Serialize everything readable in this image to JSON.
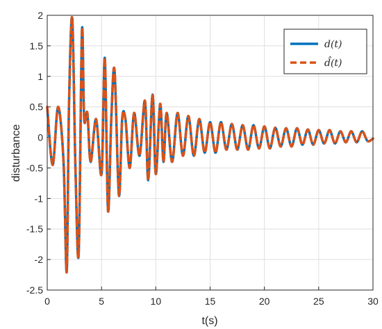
{
  "chart_data": {
    "type": "line",
    "xlabel": "t(s)",
    "ylabel": "disturbance",
    "xlim": [
      0,
      30
    ],
    "ylim": [
      -2.5,
      2
    ],
    "xticks": [
      "0",
      "5",
      "10",
      "15",
      "20",
      "25",
      "30"
    ],
    "yticks": [
      "2",
      "1.5",
      "1",
      "0.5",
      "0",
      "-0.5",
      "-1",
      "-1.5",
      "-2",
      "-2.5"
    ],
    "grid": true,
    "legend_position": "top-right",
    "series": [
      {
        "name": "d(t)",
        "style": "solid",
        "color": "#0072BD",
        "x": [
          0,
          0.5,
          1.0,
          1.5,
          1.8,
          2.0,
          2.3,
          2.6,
          2.9,
          3.2,
          3.4,
          3.7,
          4.0,
          4.5,
          5.0,
          5.3,
          5.6,
          5.9,
          6.2,
          6.6,
          6.9,
          7.2,
          7.6,
          8.0,
          8.5,
          9.0,
          9.3,
          9.7,
          10.0,
          10.4,
          10.7,
          11.0,
          11.5,
          12.0,
          12.5,
          13.0,
          13.5,
          14.0,
          14.5,
          15.0,
          15.5,
          16.0,
          16.5,
          17.0,
          17.5,
          18.0,
          18.5,
          19.0,
          19.5,
          20.0,
          20.5,
          21.0,
          21.5,
          22.0,
          22.5,
          23.0,
          23.5,
          24.0,
          24.5,
          25.0,
          25.5,
          26.0,
          26.5,
          27.0,
          27.5,
          28.0,
          28.5,
          29.0,
          29.5,
          30.0
        ],
        "y": [
          0.5,
          -0.45,
          0.5,
          -0.4,
          -2.2,
          0.5,
          1.95,
          -0.5,
          -1.9,
          1.75,
          0.3,
          0.4,
          -0.4,
          0.3,
          -0.6,
          1.3,
          -1.2,
          0.3,
          1.1,
          -0.95,
          0.3,
          0.3,
          -0.5,
          0.4,
          -0.3,
          0.6,
          -0.7,
          0.7,
          -0.6,
          0.55,
          -0.4,
          0.4,
          -0.4,
          0.4,
          -0.3,
          0.35,
          -0.3,
          0.3,
          -0.25,
          0.25,
          -0.25,
          0.25,
          -0.2,
          0.22,
          -0.2,
          0.2,
          -0.2,
          0.2,
          -0.18,
          0.18,
          -0.18,
          0.16,
          -0.15,
          0.15,
          -0.15,
          0.15,
          -0.12,
          0.13,
          -0.12,
          0.12,
          -0.1,
          0.12,
          -0.1,
          0.1,
          -0.08,
          0.1,
          -0.08,
          0.1,
          -0.06,
          -0.02
        ]
      },
      {
        "name": "d̂(t)",
        "style": "dashed",
        "color": "#D95319",
        "x": [
          0,
          0.5,
          1.0,
          1.5,
          1.8,
          2.0,
          2.3,
          2.6,
          2.9,
          3.2,
          3.4,
          3.7,
          4.0,
          4.5,
          5.0,
          5.3,
          5.6,
          5.9,
          6.2,
          6.6,
          6.9,
          7.2,
          7.6,
          8.0,
          8.5,
          9.0,
          9.3,
          9.7,
          10.0,
          10.4,
          10.7,
          11.0,
          11.5,
          12.0,
          12.5,
          13.0,
          13.5,
          14.0,
          14.5,
          15.0,
          15.5,
          16.0,
          16.5,
          17.0,
          17.5,
          18.0,
          18.5,
          19.0,
          19.5,
          20.0,
          20.5,
          21.0,
          21.5,
          22.0,
          22.5,
          23.0,
          23.5,
          24.0,
          24.5,
          25.0,
          25.5,
          26.0,
          26.5,
          27.0,
          27.5,
          28.0,
          28.5,
          29.0,
          29.5,
          30.0
        ],
        "y": [
          0.5,
          -0.45,
          0.5,
          -0.4,
          -2.2,
          0.5,
          1.95,
          -0.5,
          -1.9,
          1.75,
          0.3,
          0.4,
          -0.4,
          0.3,
          -0.6,
          1.3,
          -1.2,
          0.3,
          1.1,
          -0.95,
          0.3,
          0.3,
          -0.5,
          0.4,
          -0.3,
          0.6,
          -0.7,
          0.7,
          -0.6,
          0.55,
          -0.4,
          0.4,
          -0.4,
          0.4,
          -0.3,
          0.35,
          -0.3,
          0.3,
          -0.25,
          0.25,
          -0.25,
          0.25,
          -0.2,
          0.22,
          -0.2,
          0.2,
          -0.2,
          0.2,
          -0.18,
          0.18,
          -0.18,
          0.16,
          -0.15,
          0.15,
          -0.15,
          0.15,
          -0.12,
          0.13,
          -0.12,
          0.12,
          -0.1,
          0.12,
          -0.1,
          0.1,
          -0.08,
          0.1,
          -0.08,
          0.1,
          -0.06,
          -0.02
        ]
      }
    ]
  }
}
